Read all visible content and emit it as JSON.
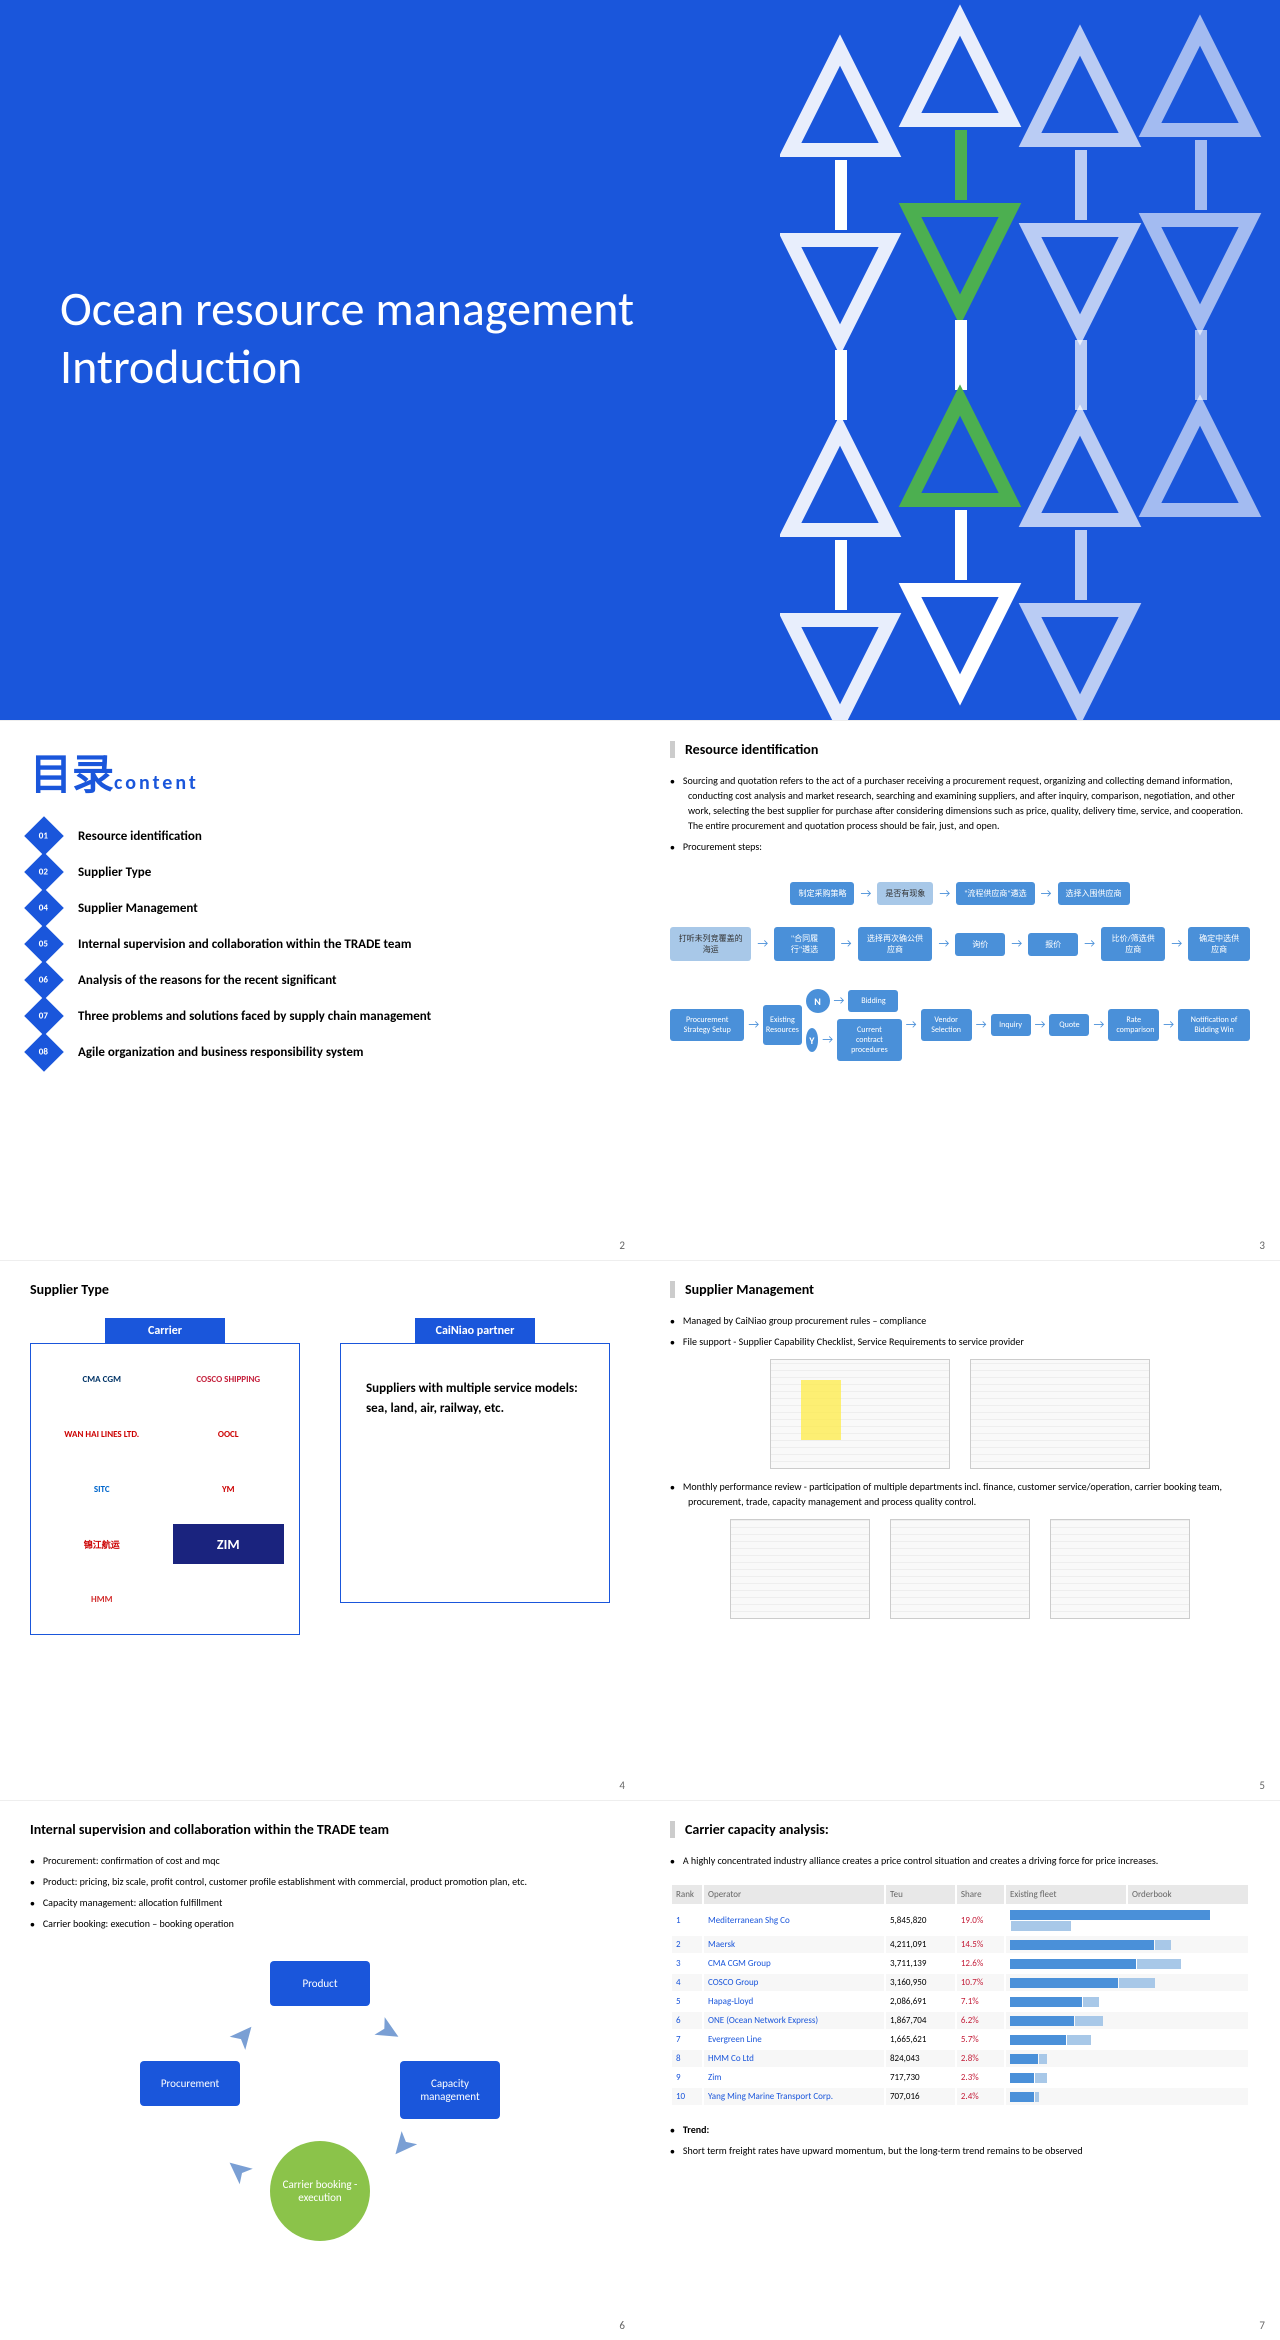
{
  "slide1": {
    "title_line1": "Ocean resource management",
    "title_line2": "Introduction",
    "bg_color": "#1a56db"
  },
  "toc": {
    "title_cn": "目录",
    "title_en": "content",
    "items": [
      {
        "num": "01",
        "label": "Resource identification"
      },
      {
        "num": "02",
        "label": "Supplier Type"
      },
      {
        "num": "04",
        "label": "Supplier Management"
      },
      {
        "num": "05",
        "label": "Internal supervision and collaboration within the TRADE team"
      },
      {
        "num": "06",
        "label": "Analysis of the reasons for the recent significant"
      },
      {
        "num": "07",
        "label": "Three problems and solutions faced by supply chain management"
      },
      {
        "num": "08",
        "label": "Agile organization and business responsibility system"
      }
    ],
    "page_num": "2"
  },
  "resource_id": {
    "title": "Resource identification",
    "desc": "Sourcing and quotation refers to the act of a purchaser receiving a procurement request, organizing and collecting demand information, conducting cost analysis and market research, searching and examining suppliers, and after inquiry, comparison, negotiation, and other work, selecting the best supplier for purchase after considering dimensions such as price, quality, delivery time, service, and cooperation. The entire procurement and quotation process should be fair, just, and open.",
    "steps_label": "Procurement steps:",
    "flow_top": [
      {
        "text": "制定采购策略",
        "type": "solid"
      },
      {
        "text": "是否有现象",
        "type": "light"
      },
      {
        "text": "\"流程供应商\"遴选",
        "type": "solid"
      },
      {
        "text": "选择入围供应商",
        "type": "solid"
      },
      {
        "text": "打听未列竞覆盖的海运",
        "type": "light"
      },
      {
        "text": "\"合同履行\"遴选",
        "type": "solid"
      },
      {
        "text": "选择再次确公供应商",
        "type": "solid"
      },
      {
        "text": "询价",
        "type": "solid"
      },
      {
        "text": "报价",
        "type": "solid"
      },
      {
        "text": "比价/筛选供应商",
        "type": "solid"
      },
      {
        "text": "确定中选供应商",
        "type": "solid"
      }
    ],
    "flow_bottom": {
      "start": "Procurement Strategy Setup",
      "decision": "Existing Resources",
      "n_path": "Bidding",
      "y_path": "Current contract procedures",
      "steps": [
        "Vendor Selection",
        "Inquiry",
        "Quote",
        "Rate comparison",
        "Notification of Bidding Win"
      ]
    },
    "page_num": "3"
  },
  "supplier_type": {
    "title": "Supplier Type",
    "carrier_label": "Carrier",
    "partner_label": "CaiNiao partner",
    "partner_text": "Suppliers with multiple service models: sea, land, air, railway, etc.",
    "carriers": [
      "CMA CGM",
      "COSCO SHIPPING",
      "WAN HAI LINES LTD.",
      "OOCL",
      "SITC",
      "YM",
      "锦江航运",
      "ZIM",
      "HMM"
    ],
    "carrier_colors": [
      "#003366",
      "#c41e3a",
      "#cc0000",
      "#cc0000",
      "#0066cc",
      "#cc0000",
      "#cc0000",
      "#1a237e",
      "#d32f2f"
    ],
    "page_num": "4"
  },
  "supplier_mgmt": {
    "title": "Supplier Management",
    "bullets": [
      "Managed by CaiNiao group procurement rules – compliance",
      "File support - Supplier Capability Checklist, Service Requirements to service provider"
    ],
    "bullet2": "Monthly performance review - participation of multiple departments incl. finance, customer service/operation, carrier booking team, procurement, trade, capacity management and process quality control.",
    "page_num": "5"
  },
  "internal": {
    "title": "Internal supervision and collaboration within the TRADE team",
    "bullets": [
      "Procurement: confirmation of cost and mqc",
      "Product: pricing, biz scale, profit control, customer profile establishment with commercial, product promotion plan, etc.",
      "Capacity management: allocation fulfillment",
      "Carrier booking: execution – booking operation"
    ],
    "cycle": {
      "top": "Product",
      "left": "Procurement",
      "right": "Capacity management",
      "bottom": "Carrier booking - execution"
    },
    "page_num": "6"
  },
  "capacity": {
    "title": "Carrier capacity analysis:",
    "bullet1": "A highly concentrated industry alliance creates a price control situation and creates a driving force for price increases.",
    "table_headers": [
      "Rank",
      "Operator",
      "Teu",
      "Share",
      "Existing fleet",
      "Orderbook"
    ],
    "rows": [
      {
        "rank": 1,
        "op": "Mediterranean Shg Co",
        "teu": "5,845,820",
        "share": "19.0%",
        "bar1": 100,
        "bar2": 30
      },
      {
        "rank": 2,
        "op": "Maersk",
        "teu": "4,211,091",
        "share": "14.5%",
        "bar1": 72,
        "bar2": 8
      },
      {
        "rank": 3,
        "op": "CMA CGM Group",
        "teu": "3,711,139",
        "share": "12.6%",
        "bar1": 63,
        "bar2": 22
      },
      {
        "rank": 4,
        "op": "COSCO Group",
        "teu": "3,160,950",
        "share": "10.7%",
        "bar1": 54,
        "bar2": 18
      },
      {
        "rank": 5,
        "op": "Hapag-Lloyd",
        "teu": "2,086,691",
        "share": "7.1%",
        "bar1": 36,
        "bar2": 8
      },
      {
        "rank": 6,
        "op": "ONE (Ocean Network Express)",
        "teu": "1,867,704",
        "share": "6.2%",
        "bar1": 32,
        "bar2": 14
      },
      {
        "rank": 7,
        "op": "Evergreen Line",
        "teu": "1,665,621",
        "share": "5.7%",
        "bar1": 28,
        "bar2": 12
      },
      {
        "rank": 8,
        "op": "HMM Co Ltd",
        "teu": "824,043",
        "share": "2.8%",
        "bar1": 14,
        "bar2": 4
      },
      {
        "rank": 9,
        "op": "Zim",
        "teu": "717,730",
        "share": "2.3%",
        "bar1": 12,
        "bar2": 6
      },
      {
        "rank": 10,
        "op": "Yang Ming Marine Transport Corp.",
        "teu": "707,016",
        "share": "2.4%",
        "bar1": 12,
        "bar2": 2
      }
    ],
    "trend_label": "Trend:",
    "trend_text": "Short term freight rates have upward momentum, but the long-term trend remains to be observed",
    "page_num": "7"
  }
}
